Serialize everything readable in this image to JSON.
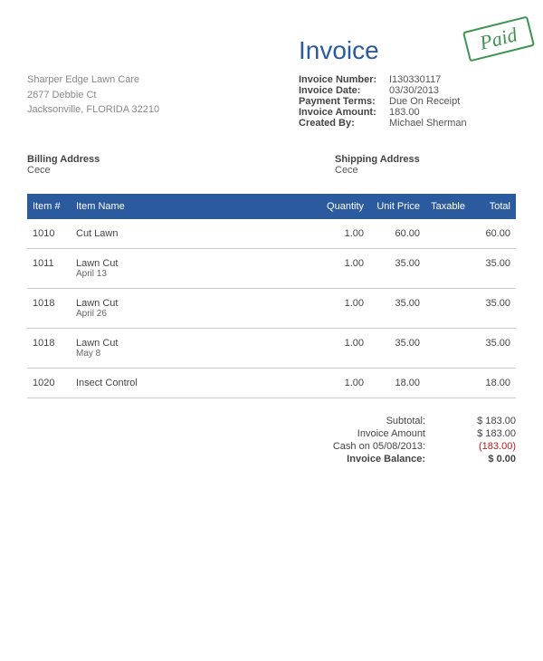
{
  "title": "Invoice",
  "paid_stamp": "Paid",
  "company": {
    "name": "Sharper Edge Lawn Care",
    "street": "2677 Debbie Ct",
    "city_state_zip": "Jacksonville, FLORIDA 32210"
  },
  "meta": {
    "invoice_number_label": "Invoice Number:",
    "invoice_number": "I130330117",
    "invoice_date_label": "Invoice Date:",
    "invoice_date": "03/30/2013",
    "payment_terms_label": "Payment Terms:",
    "payment_terms": "Due On Receipt",
    "invoice_amount_label": "Invoice Amount:",
    "invoice_amount": "183.00",
    "created_by_label": "Created By:",
    "created_by": "Michael Sherman"
  },
  "billing": {
    "title": "Billing Address",
    "value": "Cece"
  },
  "shipping": {
    "title": "Shipping Address",
    "value": "Cece"
  },
  "table": {
    "columns": {
      "item_no": "Item #",
      "item_name": "Item Name",
      "quantity": "Quantity",
      "unit_price": "Unit Price",
      "taxable": "Taxable",
      "total": "Total"
    },
    "rows": [
      {
        "no": "1010",
        "name": "Cut Lawn",
        "sub": "",
        "qty": "1.00",
        "price": "60.00",
        "tax": "",
        "total": "60.00"
      },
      {
        "no": "1011",
        "name": "Lawn Cut",
        "sub": "April 13",
        "qty": "1.00",
        "price": "35.00",
        "tax": "",
        "total": "35.00"
      },
      {
        "no": "1018",
        "name": "Lawn Cut",
        "sub": "April 26",
        "qty": "1.00",
        "price": "35.00",
        "tax": "",
        "total": "35.00"
      },
      {
        "no": "1018",
        "name": "Lawn Cut",
        "sub": "May 8",
        "qty": "1.00",
        "price": "35.00",
        "tax": "",
        "total": "35.00"
      },
      {
        "no": "1020",
        "name": "Insect Control",
        "sub": "",
        "qty": "1.00",
        "price": "18.00",
        "tax": "",
        "total": "18.00"
      }
    ]
  },
  "totals": {
    "subtotal_label": "Subtotal:",
    "subtotal": "$ 183.00",
    "invoice_amount_label": "Invoice Amount",
    "invoice_amount": "$ 183.00",
    "cash_label": "Cash on 05/08/2013:",
    "cash": "(183.00)",
    "balance_label": "Invoice Balance:",
    "balance": "$ 0.00"
  },
  "styling": {
    "header_bg": "#2b5a9e",
    "header_text": "#ffffff",
    "title_color": "#2b5a9e",
    "stamp_color": "#3e9450",
    "body_text": "#444444",
    "muted_text": "#888888",
    "border_color": "#cccccc",
    "negative_color": "#c01818",
    "background": "#ffffff",
    "font_family": "Arial",
    "title_fontsize": 28,
    "body_fontsize": 11,
    "col_align": [
      "left",
      "left",
      "right",
      "right",
      "right",
      "right"
    ]
  }
}
